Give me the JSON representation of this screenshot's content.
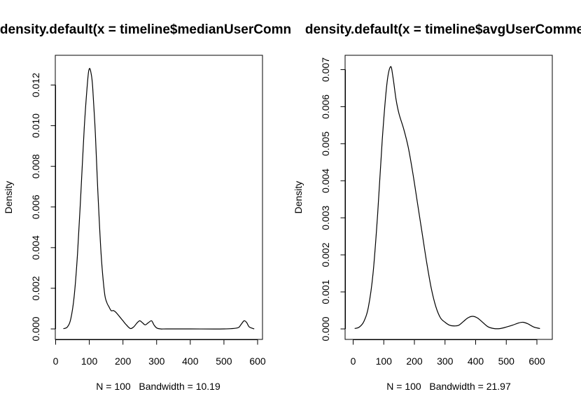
{
  "chart_data": [
    {
      "type": "line",
      "title": "density.default(x = timeline$medianUserComn",
      "xlabel": "N = 100   Bandwidth = 10.19",
      "ylabel": "Density",
      "xlim": [
        0,
        600
      ],
      "ylim": [
        0,
        0.0128
      ],
      "grid": false,
      "x_ticks": [
        "0",
        "100",
        "200",
        "300",
        "400",
        "500",
        "600"
      ],
      "y_ticks": [
        "0.000",
        "0.002",
        "0.004",
        "0.006",
        "0.008",
        "0.010",
        "0.012"
      ],
      "x_tick_values": [
        0,
        100,
        200,
        300,
        400,
        500,
        600
      ],
      "y_tick_values": [
        0,
        0.002,
        0.004,
        0.006,
        0.008,
        0.01,
        0.012
      ],
      "series": [
        {
          "x": [
            23,
            35,
            45,
            55,
            65,
            75,
            85,
            95,
            100,
            105,
            110,
            118,
            125,
            135,
            145,
            152,
            158,
            165,
            172,
            180,
            190,
            200,
            210,
            222,
            232,
            242,
            250,
            258,
            266,
            275,
            285,
            292,
            300,
            312,
            330,
            400,
            500,
            540,
            550,
            560,
            568,
            575,
            590
          ],
          "y": [
            1e-05,
            0.0001,
            0.0005,
            0.0016,
            0.0037,
            0.0067,
            0.0099,
            0.0122,
            0.0128,
            0.0126,
            0.0119,
            0.0096,
            0.0069,
            0.0037,
            0.0018,
            0.0013,
            0.0011,
            0.0009,
            0.0009,
            0.0008,
            0.0006,
            0.0004,
            0.0002,
            2e-05,
            0.0001,
            0.0003,
            0.0004,
            0.0003,
            0.0002,
            0.0003,
            0.0004,
            0.0002,
            5e-05,
            0.0,
            0.0,
            0.0,
            0.0,
            5e-05,
            0.0002,
            0.0004,
            0.0003,
            0.0001,
            0.0
          ]
        }
      ]
    },
    {
      "type": "line",
      "title": "density.default(x = timeline$avgUserComme",
      "xlabel": "N = 100   Bandwidth = 21.97",
      "ylabel": "Density",
      "xlim": [
        0,
        620
      ],
      "ylim": [
        0,
        0.00708
      ],
      "grid": false,
      "x_ticks": [
        "0",
        "100",
        "200",
        "300",
        "400",
        "500",
        "600"
      ],
      "y_ticks": [
        "0.000",
        "0.001",
        "0.002",
        "0.003",
        "0.004",
        "0.005",
        "0.006",
        "0.007"
      ],
      "x_tick_values": [
        0,
        100,
        200,
        300,
        400,
        500,
        600
      ],
      "y_tick_values": [
        0,
        0.001,
        0.002,
        0.003,
        0.004,
        0.005,
        0.006,
        0.007
      ],
      "series": [
        {
          "x": [
            5,
            20,
            35,
            50,
            65,
            80,
            95,
            110,
            122,
            130,
            140,
            150,
            165,
            180,
            195,
            210,
            225,
            240,
            255,
            270,
            285,
            300,
            315,
            330,
            345,
            360,
            375,
            390,
            405,
            420,
            440,
            460,
            480,
            500,
            520,
            540,
            555,
            570,
            590,
            610
          ],
          "y": [
            1e-05,
            5e-05,
            0.0002,
            0.0006,
            0.0015,
            0.0031,
            0.0051,
            0.0066,
            0.00708,
            0.0068,
            0.0062,
            0.0058,
            0.0054,
            0.0049,
            0.0042,
            0.0034,
            0.0026,
            0.0018,
            0.0011,
            0.0006,
            0.0003,
            0.00018,
            0.0001,
            8e-05,
            0.0001,
            0.0002,
            0.0003,
            0.00034,
            0.0003,
            0.0002,
            6e-05,
            1e-05,
            1e-05,
            5e-05,
            0.0001,
            0.00016,
            0.00018,
            0.00014,
            5e-05,
            1e-05
          ]
        }
      ]
    }
  ]
}
